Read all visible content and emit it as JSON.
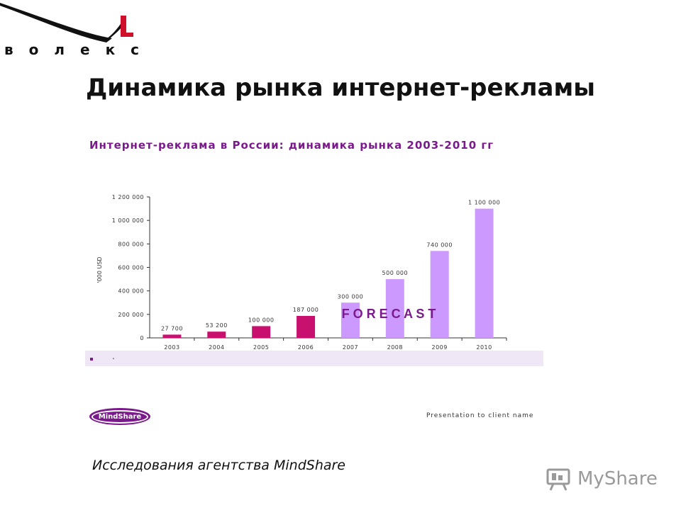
{
  "header": {
    "logo_text": "волекс",
    "title": "Динамика рынка интернет-рекламы"
  },
  "chart_data": {
    "type": "bar",
    "title": "Интернет-реклама в России: динамика рынка 2003-2010 гг",
    "ylabel": "'000 USD",
    "xlabel": "",
    "categories": [
      "2003",
      "2004",
      "2005",
      "2006",
      "2007",
      "2008",
      "2009",
      "2010"
    ],
    "values": [
      27700,
      53200,
      100000,
      187000,
      300000,
      500000,
      740000,
      1100000
    ],
    "value_labels": [
      "27 700",
      "53 200",
      "100 000",
      "187 000",
      "300 000",
      "500 000",
      "740 000",
      "1 100 000"
    ],
    "forecast_from_index": 4,
    "annotation": "F O R E C A S T",
    "ylim": [
      0,
      1200000
    ],
    "yticks": [
      0,
      200000,
      400000,
      600000,
      800000,
      1000000,
      1200000
    ],
    "ytick_labels": [
      "0",
      "200 000",
      "400 000",
      "600 000",
      "800 000",
      "1 000 000",
      "1 200 000"
    ],
    "colors": {
      "actual": "#c8106e",
      "forecast": "#cc99ff"
    },
    "grid": false
  },
  "legend": {
    "text": "."
  },
  "footer": {
    "brand": "MindShare",
    "presentation_note": "Presentation to client name",
    "source_note": "Исследования агентства MindShare",
    "watermark_text": "MyShare"
  }
}
